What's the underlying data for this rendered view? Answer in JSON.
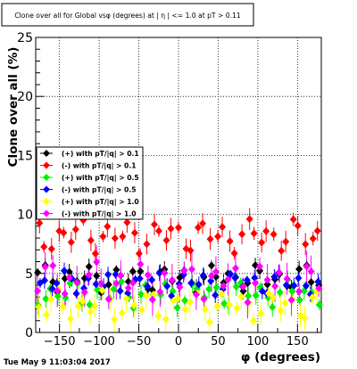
{
  "chart_data": {
    "type": "scatter",
    "title": "Clone  over all for Global vsφ (degrees) at | η | <= 1.0 at pT > 0.11",
    "xlabel": "φ (degrees)",
    "ylabel": "Clone  over all (%)",
    "xlim": [
      -180,
      180
    ],
    "ylim": [
      0,
      25
    ],
    "x_ticks": [
      -150,
      -100,
      -50,
      0,
      50,
      100,
      150
    ],
    "y_ticks": [
      0,
      5,
      10,
      15,
      20,
      25
    ],
    "grid": true,
    "legend_position": "middle-left",
    "series": [
      {
        "name": "(+) with pT/|q| > 0.1",
        "color": "#000000",
        "marker": "diamond",
        "baseline": 4.6,
        "spread": 0.8,
        "phase": 0,
        "error": 0.6
      },
      {
        "name": "(-) with pT/|q| > 0.1",
        "color": "#ff0000",
        "marker": "diamond",
        "baseline": 8.2,
        "spread": 1.0,
        "phase": 1,
        "error": 0.8
      },
      {
        "name": "(+) with pT/|q| > 0.5",
        "color": "#00ee00",
        "marker": "diamond",
        "baseline": 3.3,
        "spread": 0.8,
        "phase": 2,
        "error": 0.7
      },
      {
        "name": "(-) with pT/|q| > 0.5",
        "color": "#0000ff",
        "marker": "diamond",
        "baseline": 4.2,
        "spread": 0.7,
        "phase": 3,
        "error": 0.6
      },
      {
        "name": "(+) with pT/|q| > 1.0",
        "color": "#ffff00",
        "marker": "diamond",
        "baseline": 2.3,
        "spread": 0.9,
        "phase": 4,
        "error": 0.9
      },
      {
        "name": "(-) with pT/|q| > 1.0",
        "color": "#ff00ff",
        "marker": "diamond",
        "baseline": 4.3,
        "spread": 1.1,
        "phase": 5,
        "error": 1.2
      }
    ],
    "x_points": [
      -176,
      -168,
      -160,
      -152,
      -144,
      -136,
      -128,
      -120,
      -112,
      -104,
      -96,
      -88,
      -80,
      -72,
      -64,
      -56,
      -48,
      -40,
      -32,
      -24,
      -16,
      -8,
      0,
      8,
      16,
      24,
      32,
      40,
      48,
      56,
      64,
      72,
      80,
      88,
      96,
      104,
      112,
      120,
      128,
      136,
      144,
      152,
      160,
      168,
      176
    ]
  },
  "footer": {
    "timestamp": "Tue May  9 11:03:04 2017"
  }
}
